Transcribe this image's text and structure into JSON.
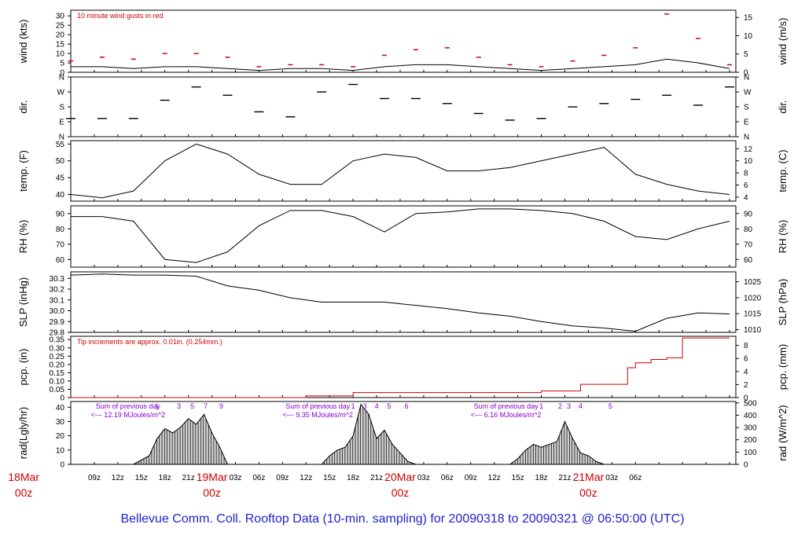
{
  "title": "Bellevue Comm. Coll. Rooftop Data (10-min. sampling) for 20090318  to  20090321 @ 06:50:00  (UTC)",
  "colors": {
    "axis": "#000000",
    "red": "#cc0000",
    "purple": "#8800cc",
    "title": "#2222cc"
  },
  "time_axis": {
    "x_ticks_hours": [
      "09z",
      "12z",
      "15z",
      "18z",
      "21z",
      "",
      "03z",
      "06z",
      "09z",
      "12z",
      "15z",
      "18z",
      "21z",
      "",
      "03z",
      "06z",
      "09z",
      "12z",
      "15z",
      "18z",
      "21z",
      "",
      "03z",
      "06z"
    ],
    "day_labels": [
      {
        "top": "18Mar",
        "bottom": "00z"
      },
      {
        "top": "19Mar",
        "bottom": "00z"
      },
      {
        "top": "20Mar",
        "bottom": "00z"
      },
      {
        "top": "21Mar",
        "bottom": "00z"
      }
    ]
  },
  "chart_data": [
    {
      "panel": "wind",
      "type": "line",
      "ylabel_left": "wind (kts)",
      "ylabel_right": "wind (m/s)",
      "annotation": "10  minute wind gusts in red",
      "ylim": [
        0,
        33
      ],
      "yticks_left": [
        "0",
        "5",
        "10",
        "15",
        "20",
        "25",
        "30"
      ],
      "yticks_right": [
        "0",
        "5",
        "10",
        "15"
      ],
      "x_hours": [
        6,
        10,
        14,
        18,
        22,
        26,
        30,
        34,
        38,
        42,
        46,
        50,
        54,
        58,
        62,
        66,
        70,
        74,
        78,
        82,
        86,
        90
      ],
      "series": [
        {
          "name": "wind speed",
          "values": [
            3,
            3,
            2,
            3,
            3,
            2,
            1,
            2,
            2,
            1,
            3,
            4,
            4,
            3,
            2,
            1,
            2,
            3,
            4,
            7,
            5,
            2
          ]
        },
        {
          "name": "10 minute wind gusts",
          "values": [
            6,
            8,
            7,
            10,
            10,
            8,
            3,
            4,
            4,
            3,
            9,
            12,
            13,
            8,
            4,
            3,
            6,
            9,
            13,
            31,
            18,
            4
          ]
        }
      ]
    },
    {
      "panel": "dir",
      "type": "scatter",
      "ylabel_left": "dir.",
      "ylabel_right": "dir.",
      "yticks_left": [
        "N",
        "E",
        "S",
        "W",
        "N"
      ],
      "yticks_right": [
        "N",
        "E",
        "S",
        "W",
        "N"
      ],
      "ylim_deg": [
        0,
        360
      ],
      "x_hours": [
        6,
        10,
        14,
        18,
        22,
        26,
        30,
        34,
        38,
        42,
        46,
        50,
        54,
        58,
        62,
        66,
        70,
        74,
        78,
        82,
        86,
        90
      ],
      "values_deg": [
        110,
        110,
        110,
        220,
        300,
        250,
        150,
        120,
        270,
        315,
        230,
        230,
        200,
        140,
        100,
        110,
        180,
        200,
        225,
        250,
        190,
        300
      ]
    },
    {
      "panel": "temp",
      "type": "line",
      "ylabel_left": "temp. (F)",
      "ylabel_right": "temp. (C)",
      "yticks_left": [
        "40",
        "45",
        "50",
        "55"
      ],
      "yticks_right": [
        "4",
        "6",
        "8",
        "10",
        "12"
      ],
      "ylim": [
        38,
        56
      ],
      "x_hours": [
        6,
        10,
        14,
        18,
        22,
        26,
        30,
        34,
        38,
        42,
        46,
        50,
        54,
        58,
        62,
        66,
        70,
        74,
        78,
        82,
        86,
        90
      ],
      "values": [
        40,
        39,
        41,
        50,
        55,
        52,
        46,
        43,
        43,
        50,
        52,
        51,
        47,
        47,
        48,
        50,
        52,
        54,
        46,
        43,
        41,
        40
      ]
    },
    {
      "panel": "rh",
      "type": "line",
      "ylabel_left": "RH (%)",
      "ylabel_right": "RH (%)",
      "yticks_left": [
        "60",
        "70",
        "80",
        "90"
      ],
      "yticks_right": [
        "60",
        "70",
        "80",
        "90"
      ],
      "ylim": [
        55,
        95
      ],
      "x_hours": [
        6,
        10,
        14,
        18,
        22,
        26,
        30,
        34,
        38,
        42,
        46,
        50,
        54,
        58,
        62,
        66,
        70,
        74,
        78,
        82,
        86,
        90
      ],
      "values": [
        88,
        88,
        85,
        60,
        58,
        65,
        82,
        92,
        92,
        88,
        78,
        90,
        91,
        93,
        93,
        92,
        90,
        85,
        75,
        73,
        80,
        85
      ]
    },
    {
      "panel": "slp",
      "type": "line",
      "ylabel_left": "SLP (inHg)",
      "ylabel_right": "SLP (hPa)",
      "yticks_left": [
        "29.8",
        "29.9",
        "30.0",
        "30.1",
        "30.2",
        "30.3"
      ],
      "yticks_right": [
        "1010",
        "1015",
        "1020",
        "1025"
      ],
      "ylim": [
        29.8,
        30.36
      ],
      "x_hours": [
        6,
        10,
        14,
        18,
        22,
        26,
        30,
        34,
        38,
        42,
        46,
        50,
        54,
        58,
        62,
        66,
        70,
        74,
        78,
        82,
        86,
        90
      ],
      "values": [
        30.33,
        30.34,
        30.33,
        30.33,
        30.32,
        30.23,
        30.19,
        30.12,
        30.08,
        30.08,
        30.08,
        30.05,
        30.02,
        29.98,
        29.95,
        29.9,
        29.86,
        29.84,
        29.81,
        29.93,
        29.98,
        29.97
      ]
    },
    {
      "panel": "pcp",
      "type": "line",
      "ylabel_left": "pcp. (in)",
      "ylabel_right": "pcp. (mm)",
      "annotation": "Tip increments are approx. 0.01in. (0.254mm.)",
      "yticks_left": [
        "0",
        "0.05",
        "0.10",
        "0.15",
        "0.20",
        "0.25",
        "0.30",
        "0.35"
      ],
      "yticks_right": [
        "0",
        "2",
        "4",
        "6",
        "8"
      ],
      "ylim": [
        0,
        0.37
      ],
      "x_hours": [
        6,
        30,
        36,
        42,
        66,
        71,
        76,
        77,
        78,
        80,
        82,
        84,
        90
      ],
      "values": [
        0,
        0,
        0.01,
        0.03,
        0.04,
        0.08,
        0.08,
        0.18,
        0.21,
        0.23,
        0.24,
        0.36,
        0.36
      ]
    },
    {
      "panel": "rad",
      "type": "area",
      "ylabel_left": "rad(Lgly/hr)",
      "ylabel_right": "rad (W/m^2)",
      "yticks_left": [
        "0",
        "10",
        "20",
        "30",
        "40"
      ],
      "yticks_right": [
        "0",
        "100",
        "200",
        "300",
        "400",
        "500"
      ],
      "ylim": [
        0,
        44
      ],
      "x_hours": [
        14,
        16,
        17,
        18,
        19,
        20,
        21,
        22,
        23,
        24,
        25,
        26,
        38,
        39,
        40,
        41,
        42,
        43,
        44,
        45,
        46,
        47,
        48,
        49,
        50,
        62,
        63,
        64,
        65,
        66,
        67,
        68,
        69,
        70,
        71,
        72,
        73,
        74
      ],
      "values": [
        0,
        6,
        18,
        25,
        22,
        26,
        32,
        28,
        35,
        22,
        12,
        0,
        0,
        6,
        10,
        12,
        20,
        42,
        35,
        18,
        24,
        14,
        8,
        2,
        0,
        0,
        4,
        10,
        14,
        12,
        14,
        16,
        30,
        18,
        8,
        6,
        2,
        0
      ],
      "daily_sums": [
        {
          "label": "Sum of previous day",
          "value": "<--- 12.19 MJoules/m^2"
        },
        {
          "label": "Sum of previous day",
          "value": "<--- 9.35 MJoules/m^2"
        },
        {
          "label": "Sum of previous day",
          "value": "<--- 6.16 MJoules/m^2"
        }
      ],
      "event_markers": [
        {
          "hour": 17,
          "label": "1"
        },
        {
          "hour": 19.8,
          "label": "3"
        },
        {
          "hour": 21.5,
          "label": "5"
        },
        {
          "hour": 23.2,
          "label": "7"
        },
        {
          "hour": 25.2,
          "label": "9"
        },
        {
          "hour": 42,
          "label": "1"
        },
        {
          "hour": 43.5,
          "label": "3"
        },
        {
          "hour": 45,
          "label": "4"
        },
        {
          "hour": 46.6,
          "label": "5"
        },
        {
          "hour": 48.8,
          "label": "6"
        },
        {
          "hour": 66,
          "label": "1"
        },
        {
          "hour": 68.4,
          "label": "2"
        },
        {
          "hour": 69.5,
          "label": "3"
        },
        {
          "hour": 71,
          "label": "4"
        },
        {
          "hour": 74.8,
          "label": "5"
        }
      ]
    }
  ]
}
